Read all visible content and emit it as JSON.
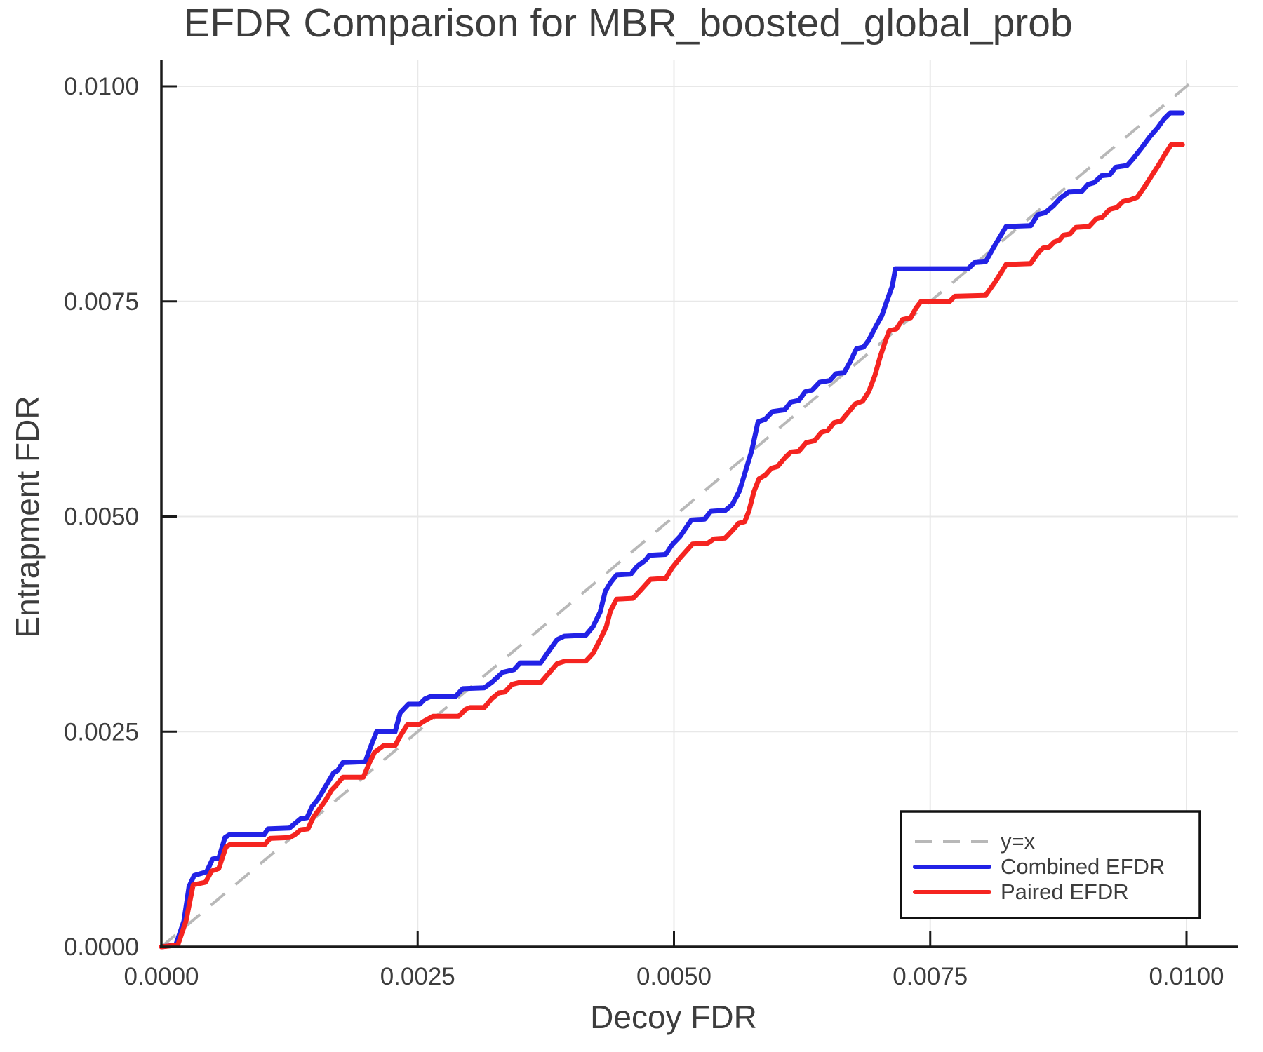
{
  "chart_data": {
    "type": "line",
    "title": "EFDR Comparison for MBR_boosted_global_prob",
    "xlabel": "Decoy FDR",
    "ylabel": "Entrapment FDR",
    "xlim": [
      0,
      0.0105
    ],
    "ylim": [
      0,
      0.0103
    ],
    "grid": true,
    "legend_position": "lower right",
    "x_ticks": {
      "values": [
        0.0,
        0.0025,
        0.005,
        0.0075,
        0.01
      ],
      "labels": [
        "0.0000",
        "0.0025",
        "0.0050",
        "0.0075",
        "0.0100"
      ]
    },
    "y_ticks": {
      "values": [
        0.0,
        0.0025,
        0.005,
        0.0075,
        0.01
      ],
      "labels": [
        "0.0000",
        "0.0025",
        "0.0050",
        "0.0075",
        "0.0100"
      ]
    },
    "colors": {
      "grid": "#e8e8e8",
      "spine": "#1a1a1a",
      "text": "#3d3d3d",
      "background": "#ffffff",
      "legend_border": "#111111"
    },
    "series": [
      {
        "name": "y=x",
        "style": "dashed",
        "color": "#b8b8b8",
        "x": [
          0,
          0.0101
        ],
        "y": [
          0,
          0.0101
        ]
      },
      {
        "name": "Combined EFDR",
        "style": "solid",
        "color": "#2222e6",
        "points": [
          [
            0,
            0
          ],
          [
            0.00014,
            2e-05
          ],
          [
            0.00022,
            0.0003
          ],
          [
            0.00027,
            0.0007
          ],
          [
            0.00032,
            0.00083
          ],
          [
            0.00044,
            0.00087
          ],
          [
            0.0005,
            0.00102
          ],
          [
            0.00056,
            0.00103
          ],
          [
            0.00062,
            0.00127
          ],
          [
            0.00066,
            0.0013
          ],
          [
            0.001,
            0.0013
          ],
          [
            0.00104,
            0.00137
          ],
          [
            0.00125,
            0.00138
          ],
          [
            0.0013,
            0.00143
          ],
          [
            0.00136,
            0.00149
          ],
          [
            0.00142,
            0.0015
          ],
          [
            0.00147,
            0.00163
          ],
          [
            0.00153,
            0.00172
          ],
          [
            0.00158,
            0.00182
          ],
          [
            0.00163,
            0.00192
          ],
          [
            0.00168,
            0.00202
          ],
          [
            0.00172,
            0.00205
          ],
          [
            0.00177,
            0.00214
          ],
          [
            0.00199,
            0.00215
          ],
          [
            0.00204,
            0.00232
          ],
          [
            0.0021,
            0.0025
          ],
          [
            0.00228,
            0.0025
          ],
          [
            0.00233,
            0.00272
          ],
          [
            0.00241,
            0.00282
          ],
          [
            0.00252,
            0.00282
          ],
          [
            0.00257,
            0.00288
          ],
          [
            0.00263,
            0.00291
          ],
          [
            0.00287,
            0.00291
          ],
          [
            0.00294,
            0.003
          ],
          [
            0.00315,
            0.00301
          ],
          [
            0.00323,
            0.00308
          ],
          [
            0.00333,
            0.00319
          ],
          [
            0.00344,
            0.00322
          ],
          [
            0.0035,
            0.0033
          ],
          [
            0.0037,
            0.0033
          ],
          [
            0.00377,
            0.00342
          ],
          [
            0.00386,
            0.00357
          ],
          [
            0.00393,
            0.00361
          ],
          [
            0.00414,
            0.00362
          ],
          [
            0.00421,
            0.00372
          ],
          [
            0.00428,
            0.00389
          ],
          [
            0.00433,
            0.00413
          ],
          [
            0.00438,
            0.00423
          ],
          [
            0.00444,
            0.00432
          ],
          [
            0.00458,
            0.00433
          ],
          [
            0.00464,
            0.00442
          ],
          [
            0.00472,
            0.00449
          ],
          [
            0.00476,
            0.00455
          ],
          [
            0.00492,
            0.00456
          ],
          [
            0.00498,
            0.00467
          ],
          [
            0.00506,
            0.00477
          ],
          [
            0.00517,
            0.00496
          ],
          [
            0.0053,
            0.00497
          ],
          [
            0.00536,
            0.00506
          ],
          [
            0.0055,
            0.00507
          ],
          [
            0.00557,
            0.00514
          ],
          [
            0.00564,
            0.0053
          ],
          [
            0.00576,
            0.00577
          ],
          [
            0.00582,
            0.0061
          ],
          [
            0.00589,
            0.00613
          ],
          [
            0.00596,
            0.00622
          ],
          [
            0.00608,
            0.00624
          ],
          [
            0.00614,
            0.00633
          ],
          [
            0.00622,
            0.00635
          ],
          [
            0.00628,
            0.00645
          ],
          [
            0.00635,
            0.00647
          ],
          [
            0.00642,
            0.00656
          ],
          [
            0.00652,
            0.00658
          ],
          [
            0.00658,
            0.00666
          ],
          [
            0.00666,
            0.00667
          ],
          [
            0.00672,
            0.0068
          ],
          [
            0.00678,
            0.00695
          ],
          [
            0.00685,
            0.00697
          ],
          [
            0.0069,
            0.00705
          ],
          [
            0.00697,
            0.00721
          ],
          [
            0.00703,
            0.00734
          ],
          [
            0.00707,
            0.00748
          ],
          [
            0.0071,
            0.00758
          ],
          [
            0.00713,
            0.00768
          ],
          [
            0.00716,
            0.00788
          ],
          [
            0.00787,
            0.00788
          ],
          [
            0.00793,
            0.00795
          ],
          [
            0.00804,
            0.00796
          ],
          [
            0.00812,
            0.00813
          ],
          [
            0.00819,
            0.00827
          ],
          [
            0.00824,
            0.00837
          ],
          [
            0.00848,
            0.00838
          ],
          [
            0.00855,
            0.00851
          ],
          [
            0.00862,
            0.00853
          ],
          [
            0.0087,
            0.00861
          ],
          [
            0.00877,
            0.0087
          ],
          [
            0.00885,
            0.00877
          ],
          [
            0.00898,
            0.00878
          ],
          [
            0.00904,
            0.00886
          ],
          [
            0.0091,
            0.00888
          ],
          [
            0.00917,
            0.00896
          ],
          [
            0.00925,
            0.00897
          ],
          [
            0.00931,
            0.00906
          ],
          [
            0.00942,
            0.00908
          ],
          [
            0.00948,
            0.00916
          ],
          [
            0.00956,
            0.00928
          ],
          [
            0.00964,
            0.00941
          ],
          [
            0.00972,
            0.00952
          ],
          [
            0.00978,
            0.00962
          ],
          [
            0.00984,
            0.00969
          ],
          [
            0.00996,
            0.00969
          ]
        ]
      },
      {
        "name": "Paired EFDR",
        "style": "solid",
        "color": "#f52420",
        "points": [
          [
            0,
            0
          ],
          [
            0.00016,
            2e-05
          ],
          [
            0.00024,
            0.0003
          ],
          [
            0.00031,
            0.00072
          ],
          [
            0.00043,
            0.00075
          ],
          [
            0.00049,
            0.00088
          ],
          [
            0.00056,
            0.00091
          ],
          [
            0.00063,
            0.00116
          ],
          [
            0.00067,
            0.00119
          ],
          [
            0.00101,
            0.00119
          ],
          [
            0.00106,
            0.00126
          ],
          [
            0.00125,
            0.00127
          ],
          [
            0.0013,
            0.0013
          ],
          [
            0.00136,
            0.00136
          ],
          [
            0.00143,
            0.00137
          ],
          [
            0.00148,
            0.0015
          ],
          [
            0.00154,
            0.0016
          ],
          [
            0.0016,
            0.0017
          ],
          [
            0.00166,
            0.00182
          ],
          [
            0.0017,
            0.00187
          ],
          [
            0.00177,
            0.00197
          ],
          [
            0.00197,
            0.00197
          ],
          [
            0.00203,
            0.00214
          ],
          [
            0.00208,
            0.00226
          ],
          [
            0.00217,
            0.00234
          ],
          [
            0.00228,
            0.00234
          ],
          [
            0.00233,
            0.00245
          ],
          [
            0.0024,
            0.00258
          ],
          [
            0.00251,
            0.00258
          ],
          [
            0.00256,
            0.00262
          ],
          [
            0.00265,
            0.00268
          ],
          [
            0.0029,
            0.00268
          ],
          [
            0.00297,
            0.00276
          ],
          [
            0.00301,
            0.00278
          ],
          [
            0.00315,
            0.00278
          ],
          [
            0.00322,
            0.00288
          ],
          [
            0.00329,
            0.00295
          ],
          [
            0.00335,
            0.00296
          ],
          [
            0.00342,
            0.00305
          ],
          [
            0.00349,
            0.00307
          ],
          [
            0.0037,
            0.00307
          ],
          [
            0.00378,
            0.00318
          ],
          [
            0.00386,
            0.00329
          ],
          [
            0.00394,
            0.00332
          ],
          [
            0.00414,
            0.00332
          ],
          [
            0.00421,
            0.00341
          ],
          [
            0.00428,
            0.00357
          ],
          [
            0.00434,
            0.00372
          ],
          [
            0.00438,
            0.0039
          ],
          [
            0.00444,
            0.00404
          ],
          [
            0.0046,
            0.00405
          ],
          [
            0.00468,
            0.00415
          ],
          [
            0.00477,
            0.00427
          ],
          [
            0.00492,
            0.00428
          ],
          [
            0.00498,
            0.0044
          ],
          [
            0.00506,
            0.00452
          ],
          [
            0.00518,
            0.00468
          ],
          [
            0.00533,
            0.00469
          ],
          [
            0.00539,
            0.00474
          ],
          [
            0.0055,
            0.00475
          ],
          [
            0.00558,
            0.00485
          ],
          [
            0.00563,
            0.00492
          ],
          [
            0.00569,
            0.00494
          ],
          [
            0.00573,
            0.00506
          ],
          [
            0.00578,
            0.00529
          ],
          [
            0.00583,
            0.00544
          ],
          [
            0.00589,
            0.00548
          ],
          [
            0.00595,
            0.00556
          ],
          [
            0.00601,
            0.00558
          ],
          [
            0.00608,
            0.00568
          ],
          [
            0.00614,
            0.00575
          ],
          [
            0.00622,
            0.00576
          ],
          [
            0.00629,
            0.00586
          ],
          [
            0.00637,
            0.00588
          ],
          [
            0.00644,
            0.00598
          ],
          [
            0.0065,
            0.006
          ],
          [
            0.00656,
            0.00609
          ],
          [
            0.00663,
            0.00611
          ],
          [
            0.0067,
            0.00621
          ],
          [
            0.00677,
            0.00631
          ],
          [
            0.00684,
            0.00634
          ],
          [
            0.0069,
            0.00645
          ],
          [
            0.00696,
            0.00664
          ],
          [
            0.00701,
            0.00685
          ],
          [
            0.00706,
            0.00703
          ],
          [
            0.0071,
            0.00716
          ],
          [
            0.00717,
            0.00718
          ],
          [
            0.00723,
            0.00729
          ],
          [
            0.00731,
            0.00731
          ],
          [
            0.00736,
            0.00742
          ],
          [
            0.00741,
            0.0075
          ],
          [
            0.00769,
            0.0075
          ],
          [
            0.00774,
            0.00756
          ],
          [
            0.00804,
            0.00757
          ],
          [
            0.00813,
            0.00772
          ],
          [
            0.0082,
            0.00785
          ],
          [
            0.00824,
            0.00793
          ],
          [
            0.00848,
            0.00794
          ],
          [
            0.00855,
            0.00806
          ],
          [
            0.0086,
            0.00812
          ],
          [
            0.00866,
            0.00813
          ],
          [
            0.00871,
            0.00819
          ],
          [
            0.00876,
            0.00821
          ],
          [
            0.0088,
            0.00827
          ],
          [
            0.00886,
            0.00828
          ],
          [
            0.00892,
            0.00836
          ],
          [
            0.00905,
            0.00837
          ],
          [
            0.00912,
            0.00846
          ],
          [
            0.00918,
            0.00848
          ],
          [
            0.00925,
            0.00857
          ],
          [
            0.00932,
            0.00859
          ],
          [
            0.00938,
            0.00866
          ],
          [
            0.00945,
            0.00868
          ],
          [
            0.00952,
            0.00871
          ],
          [
            0.00959,
            0.00883
          ],
          [
            0.00966,
            0.00896
          ],
          [
            0.00973,
            0.00909
          ],
          [
            0.00979,
            0.00921
          ],
          [
            0.00985,
            0.00932
          ],
          [
            0.00996,
            0.00932
          ]
        ]
      }
    ]
  }
}
